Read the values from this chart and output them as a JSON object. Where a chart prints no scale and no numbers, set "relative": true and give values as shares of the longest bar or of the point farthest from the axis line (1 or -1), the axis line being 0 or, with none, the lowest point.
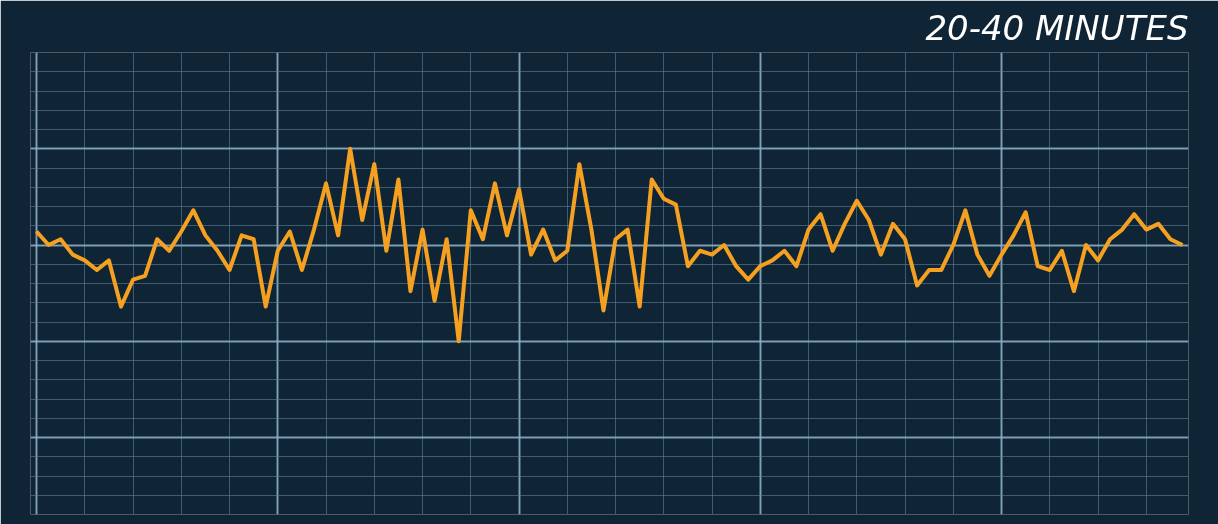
{
  "chart_data": {
    "type": "line",
    "title": "20-40 MINUTES",
    "relative": true,
    "grid": true,
    "categories": [
      null,
      null,
      null,
      null,
      null,
      null,
      null,
      null,
      null,
      null,
      null,
      null,
      null,
      null,
      null,
      null,
      null,
      null,
      null,
      null,
      null,
      null,
      null,
      null,
      null,
      null,
      null,
      null,
      null,
      null,
      null,
      null,
      null,
      null,
      null,
      null,
      null,
      null,
      null,
      null,
      null,
      null,
      null,
      null,
      null,
      null,
      null,
      null,
      null,
      null,
      null,
      null,
      null,
      null,
      null,
      null,
      null,
      null,
      null,
      null,
      null,
      null,
      null,
      null,
      null,
      null,
      null,
      null,
      null,
      null,
      null,
      null,
      null,
      null,
      null,
      null,
      null,
      null,
      null,
      null,
      null,
      null,
      null,
      null,
      null,
      null,
      null,
      null,
      null,
      null,
      null,
      null,
      null,
      null,
      null,
      null
    ],
    "series": [
      {
        "color": "#f5a020",
        "values": [
          0.57,
          0.5,
          0.53,
          0.45,
          0.42,
          0.37,
          0.42,
          0.18,
          0.32,
          0.34,
          0.53,
          0.47,
          0.57,
          0.68,
          0.55,
          0.47,
          0.37,
          0.55,
          0.53,
          0.18,
          0.47,
          0.57,
          0.37,
          0.58,
          0.82,
          0.55,
          1,
          0.63,
          0.92,
          0.47,
          0.84,
          0.26,
          0.58,
          0.21,
          0.53,
          0,
          0.68,
          0.53,
          0.82,
          0.55,
          0.79,
          0.45,
          0.58,
          0.42,
          0.47,
          0.92,
          0.58,
          0.16,
          0.53,
          0.58,
          0.18,
          0.84,
          0.74,
          0.71,
          0.39,
          0.47,
          0.45,
          0.5,
          0.39,
          0.32,
          0.39,
          0.42,
          0.47,
          0.39,
          0.58,
          0.66,
          0.47,
          0.61,
          0.73,
          0.63,
          0.45,
          0.61,
          0.53,
          0.29,
          0.37,
          0.37,
          0.5,
          0.68,
          0.45,
          0.34,
          0.45,
          0.55,
          0.67,
          0.39,
          0.37,
          0.47,
          0.26,
          0.5,
          0.42,
          0.53,
          0.58,
          0.66,
          0.58,
          0.61,
          0.53,
          0.5
        ]
      }
    ]
  }
}
